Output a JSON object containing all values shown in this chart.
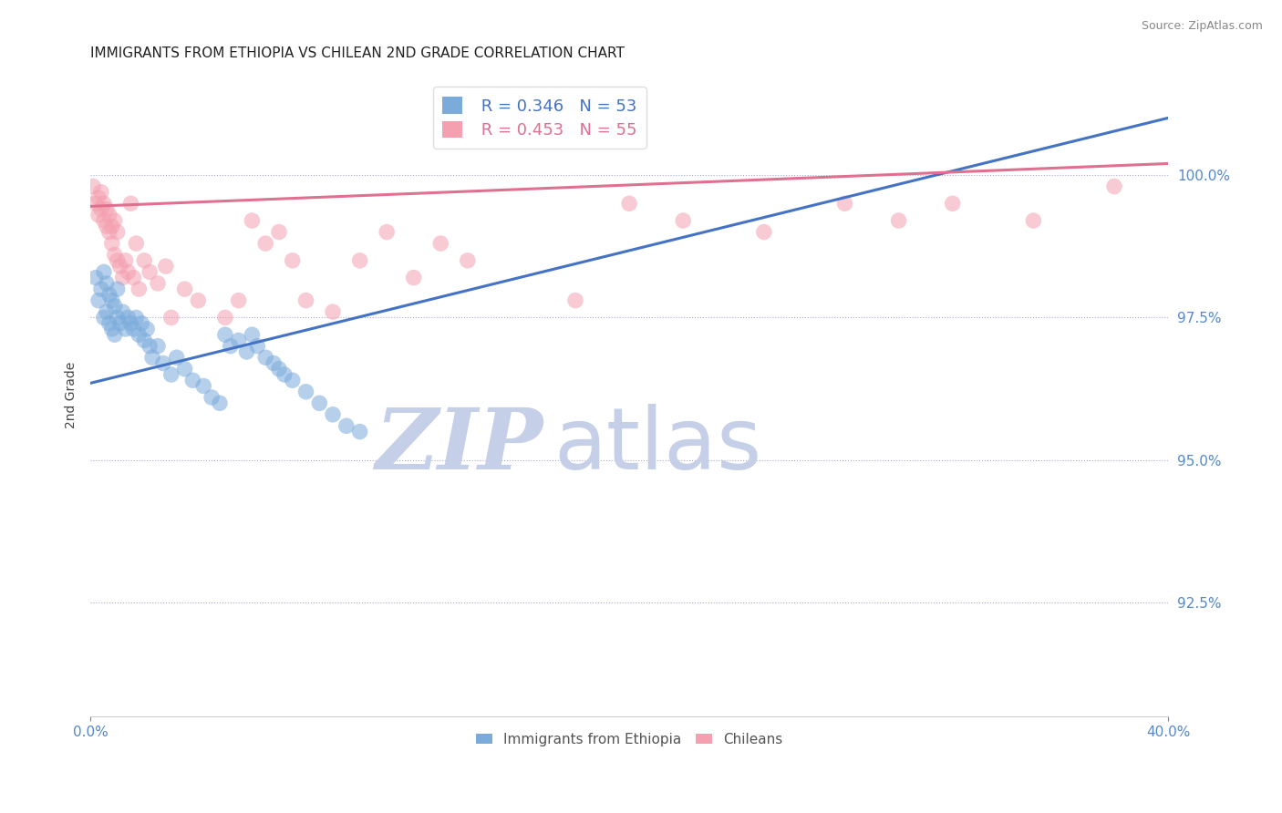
{
  "title": "IMMIGRANTS FROM ETHIOPIA VS CHILEAN 2ND GRADE CORRELATION CHART",
  "source_text": "Source: ZipAtlas.com",
  "ylabel": "2nd Grade",
  "xlim": [
    0.0,
    40.0
  ],
  "ylim": [
    90.5,
    101.8
  ],
  "yticks": [
    92.5,
    95.0,
    97.5,
    100.0
  ],
  "ytick_labels": [
    "92.5%",
    "95.0%",
    "97.5%",
    "100.0%"
  ],
  "xticks": [
    0.0,
    40.0
  ],
  "xtick_labels": [
    "0.0%",
    "40.0%"
  ],
  "blue_color": "#7aabdb",
  "pink_color": "#f4a0b0",
  "blue_line_color": "#4472c4",
  "pink_line_color": "#e07090",
  "legend_R_blue": "0.346",
  "legend_N_blue": "53",
  "legend_R_pink": "0.453",
  "legend_N_pink": "55",
  "legend_label_blue": "Immigrants from Ethiopia",
  "legend_label_pink": "Chileans",
  "watermark_zip": "ZIP",
  "watermark_atlas": "atlas",
  "blue_scatter_x": [
    0.2,
    0.3,
    0.4,
    0.5,
    0.5,
    0.6,
    0.6,
    0.7,
    0.7,
    0.8,
    0.8,
    0.9,
    0.9,
    1.0,
    1.0,
    1.1,
    1.2,
    1.3,
    1.4,
    1.5,
    1.6,
    1.7,
    1.8,
    1.9,
    2.0,
    2.1,
    2.2,
    2.3,
    2.5,
    2.7,
    3.0,
    3.2,
    3.5,
    3.8,
    4.2,
    4.5,
    4.8,
    5.0,
    5.2,
    5.5,
    5.8,
    6.0,
    6.2,
    6.5,
    6.8,
    7.0,
    7.2,
    7.5,
    8.0,
    8.5,
    9.0,
    9.5,
    10.0
  ],
  "blue_scatter_y": [
    98.2,
    97.8,
    98.0,
    97.5,
    98.3,
    97.6,
    98.1,
    97.4,
    97.9,
    97.3,
    97.8,
    97.2,
    97.7,
    97.5,
    98.0,
    97.4,
    97.6,
    97.3,
    97.5,
    97.4,
    97.3,
    97.5,
    97.2,
    97.4,
    97.1,
    97.3,
    97.0,
    96.8,
    97.0,
    96.7,
    96.5,
    96.8,
    96.6,
    96.4,
    96.3,
    96.1,
    96.0,
    97.2,
    97.0,
    97.1,
    96.9,
    97.2,
    97.0,
    96.8,
    96.7,
    96.6,
    96.5,
    96.4,
    96.2,
    96.0,
    95.8,
    95.6,
    95.5
  ],
  "pink_scatter_x": [
    0.1,
    0.2,
    0.3,
    0.3,
    0.4,
    0.4,
    0.5,
    0.5,
    0.6,
    0.6,
    0.7,
    0.7,
    0.8,
    0.8,
    0.9,
    0.9,
    1.0,
    1.0,
    1.1,
    1.2,
    1.3,
    1.4,
    1.5,
    1.6,
    1.7,
    1.8,
    2.0,
    2.2,
    2.5,
    2.8,
    3.0,
    3.5,
    4.0,
    5.0,
    5.5,
    6.0,
    6.5,
    7.0,
    7.5,
    8.0,
    9.0,
    10.0,
    11.0,
    12.0,
    13.0,
    14.0,
    18.0,
    20.0,
    22.0,
    25.0,
    28.0,
    30.0,
    32.0,
    35.0,
    38.0
  ],
  "pink_scatter_y": [
    99.8,
    99.5,
    99.3,
    99.6,
    99.4,
    99.7,
    99.2,
    99.5,
    99.1,
    99.4,
    99.0,
    99.3,
    98.8,
    99.1,
    98.6,
    99.2,
    98.5,
    99.0,
    98.4,
    98.2,
    98.5,
    98.3,
    99.5,
    98.2,
    98.8,
    98.0,
    98.5,
    98.3,
    98.1,
    98.4,
    97.5,
    98.0,
    97.8,
    97.5,
    97.8,
    99.2,
    98.8,
    99.0,
    98.5,
    97.8,
    97.6,
    98.5,
    99.0,
    98.2,
    98.8,
    98.5,
    97.8,
    99.5,
    99.2,
    99.0,
    99.5,
    99.2,
    99.5,
    99.2,
    99.8
  ],
  "blue_trend_x": [
    0.0,
    40.0
  ],
  "blue_trend_y": [
    96.35,
    101.0
  ],
  "pink_trend_x": [
    0.0,
    40.0
  ],
  "pink_trend_y": [
    99.45,
    100.2
  ],
  "background_color": "#ffffff",
  "grid_color": "#aaaacc",
  "title_fontsize": 11,
  "tick_color": "#5588cc",
  "watermark_color_zip": "#c5cfe8",
  "watermark_color_atlas": "#c5cfe8",
  "source_fontsize": 9
}
